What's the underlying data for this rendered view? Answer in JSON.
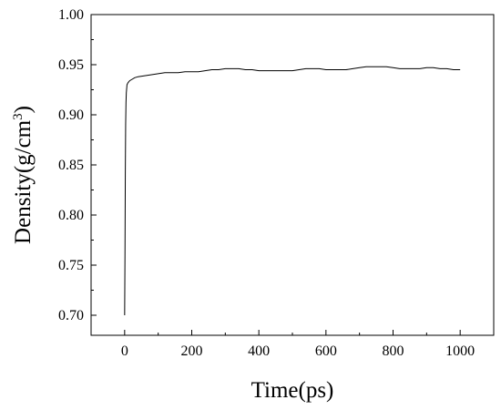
{
  "chart_data": {
    "type": "line",
    "xlabel": "Time(ps)",
    "ylabel_base": "Density(g/cm",
    "ylabel_sup": "3",
    "ylabel_close": ")",
    "xlim": [
      -100,
      1100
    ],
    "ylim": [
      0.68,
      1.0
    ],
    "x_ticks": [
      0,
      200,
      400,
      600,
      800,
      1000
    ],
    "y_ticks": [
      0.7,
      0.75,
      0.8,
      0.85,
      0.9,
      0.95,
      1.0
    ],
    "line_color": "#000000",
    "series": [
      {
        "x": [
          0,
          1,
          2,
          3,
          4,
          5,
          7,
          10,
          15,
          20,
          30,
          40,
          60,
          80,
          100,
          120,
          140,
          160,
          180,
          200,
          220,
          240,
          260,
          280,
          300,
          320,
          340,
          360,
          380,
          400,
          420,
          440,
          460,
          480,
          500,
          520,
          540,
          560,
          580,
          600,
          620,
          640,
          660,
          680,
          700,
          720,
          740,
          760,
          780,
          800,
          820,
          840,
          860,
          880,
          900,
          920,
          940,
          960,
          980,
          1000
        ],
        "y": [
          0.7,
          0.76,
          0.84,
          0.89,
          0.912,
          0.922,
          0.93,
          0.932,
          0.934,
          0.935,
          0.937,
          0.938,
          0.939,
          0.94,
          0.941,
          0.942,
          0.942,
          0.942,
          0.943,
          0.943,
          0.943,
          0.944,
          0.945,
          0.945,
          0.946,
          0.946,
          0.946,
          0.945,
          0.945,
          0.944,
          0.944,
          0.944,
          0.944,
          0.944,
          0.944,
          0.945,
          0.946,
          0.946,
          0.946,
          0.945,
          0.945,
          0.945,
          0.945,
          0.946,
          0.947,
          0.948,
          0.948,
          0.948,
          0.948,
          0.947,
          0.946,
          0.946,
          0.946,
          0.946,
          0.947,
          0.947,
          0.946,
          0.946,
          0.945,
          0.945
        ]
      }
    ]
  }
}
